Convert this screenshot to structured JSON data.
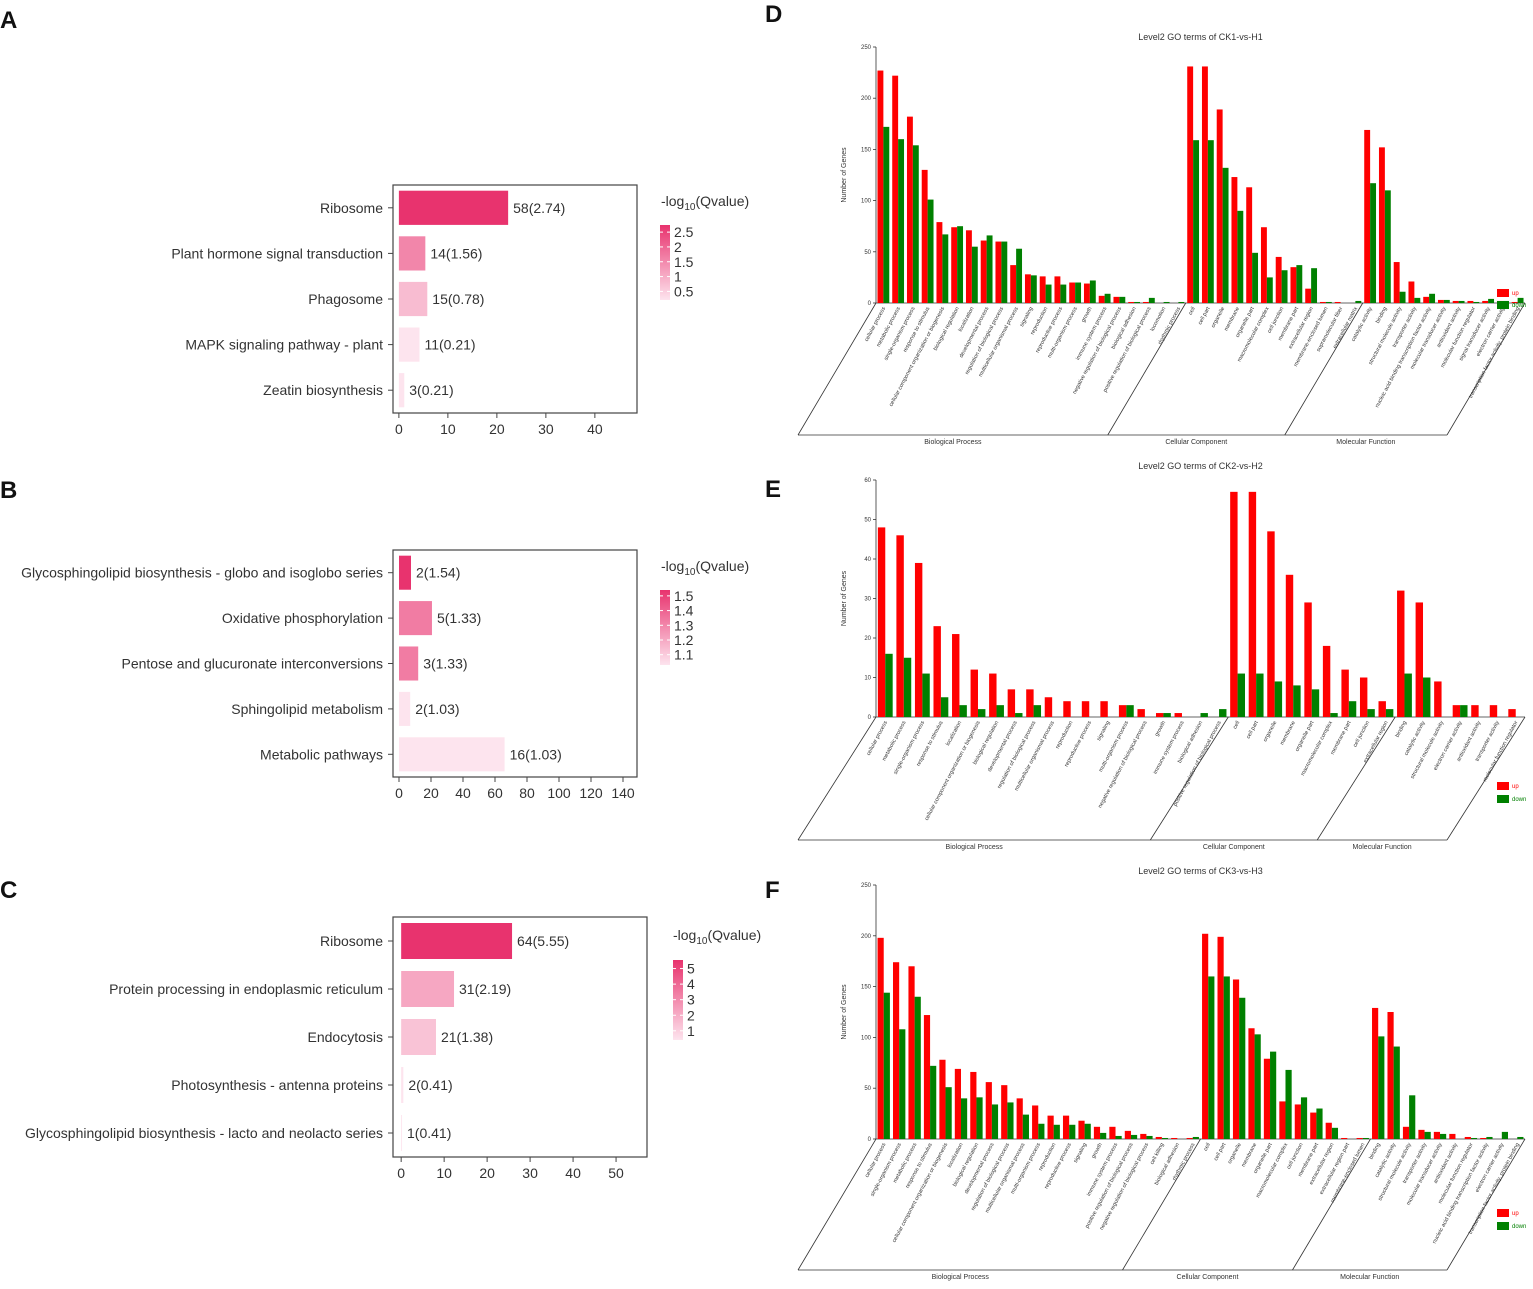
{
  "chart_data": [
    {
      "type": "barh",
      "panel": "A",
      "categories": [
        "Ribosome",
        "Plant hormone signal transduction",
        "Phagosome",
        "MAPK signaling pathway - plant",
        "Zeatin biosynthesis"
      ],
      "values": [
        22.3,
        5.4,
        5.8,
        4.2,
        1.1
      ],
      "bar_labels": [
        "58(2.74)",
        "14(1.56)",
        "15(0.78)",
        "11(0.21)",
        "3(0.21)"
      ],
      "color_values": [
        2.74,
        1.56,
        0.78,
        0.21,
        0.21
      ],
      "xlim": [
        -1.2,
        48.6
      ],
      "xticks": [
        0,
        10,
        20,
        30,
        40
      ],
      "colorbar_title": [
        "-log",
        "10",
        "(Qvalue)"
      ],
      "colorbar_lim": [
        0.21,
        2.74
      ],
      "colorbar_ticks": [
        0.5,
        1,
        1.5,
        2,
        2.5
      ],
      "colors": [
        "#fde4ee",
        "#e8336e"
      ]
    },
    {
      "type": "barh",
      "panel": "B",
      "categories": [
        "Glycosphingolipid biosynthesis - globo and isoglobo series",
        "Oxidative phosphorylation",
        "Pentose and glucuronate interconversions",
        "Sphingolipid metabolism",
        "Metabolic pathways"
      ],
      "values": [
        7.5,
        20.6,
        12,
        7,
        66
      ],
      "bar_labels": [
        "2(1.54)",
        "5(1.33)",
        "3(1.33)",
        "2(1.03)",
        "16(1.03)"
      ],
      "color_values": [
        1.54,
        1.33,
        1.33,
        1.03,
        1.03
      ],
      "xlim": [
        -3.75,
        148.75
      ],
      "xticks": [
        0,
        20,
        40,
        60,
        80,
        100,
        120,
        140
      ],
      "colorbar_title": [
        "-log",
        "10",
        "(Qvalue)"
      ],
      "colorbar_lim": [
        1.03,
        1.54
      ],
      "colorbar_ticks": [
        1.1,
        1.2,
        1.3,
        1.4,
        1.5
      ],
      "colors": [
        "#fde4ee",
        "#e8336e"
      ]
    },
    {
      "type": "barh",
      "panel": "C",
      "categories": [
        "Ribosome",
        "Protein processing in endoplasmic reticulum",
        "Endocytosis",
        "Photosynthesis - antenna proteins",
        "Glycosphingolipid biosynthesis - lacto and neolacto series"
      ],
      "values": [
        25.8,
        12.3,
        8.1,
        0.5,
        0.2
      ],
      "bar_labels": [
        "64(5.55)",
        "31(2.19)",
        "21(1.38)",
        "2(0.41)",
        "1(0.41)"
      ],
      "color_values": [
        5.55,
        2.19,
        1.38,
        0.41,
        0.41
      ],
      "xlim": [
        -1.9,
        57.2
      ],
      "xticks": [
        0,
        10,
        20,
        30,
        40,
        50
      ],
      "colorbar_title": [
        "-log",
        "10",
        "(Qvalue)"
      ],
      "colorbar_lim": [
        0.41,
        5.55
      ],
      "colorbar_ticks": [
        1,
        2,
        3,
        4,
        5
      ],
      "colors": [
        "#fde4ee",
        "#e8336e"
      ]
    },
    {
      "type": "bar",
      "panel": "D",
      "title": "Level2 GO terms of CK1-vs-H1",
      "ylabel": "Number of Genes",
      "groups": [
        {
          "name": "Biological Process",
          "categories": [
            "cellular process",
            "metabolic process",
            "single-organism process",
            "response to stimulus",
            "cellular component organization or biogenesis",
            "biological regulation",
            "localization",
            "developmental process",
            "regulation of biological process",
            "multicellular organismal process",
            "signaling",
            "reproduction",
            "reproductive process",
            "multi-organism process",
            "growth",
            "immune system process",
            "negative regulation of biological process",
            "biological adhesion",
            "positive regulation of biological process",
            "locomotion",
            "rhythmic process"
          ]
        },
        {
          "name": "Cellular Component",
          "categories": [
            "cell",
            "cell part",
            "organelle",
            "membrane",
            "organelle part",
            "macromolecular complex",
            "cell junction",
            "membrane part",
            "extracellular region",
            "membrane-enclosed lumen",
            "supramolecular fiber",
            "extracellular matrix"
          ]
        },
        {
          "name": "Molecular Function",
          "categories": [
            "catalytic activity",
            "binding",
            "structural molecule activity",
            "transporter activity",
            "nucleic acid binding transcription factor activity",
            "molecular transducer activity",
            "antioxidant activity",
            "molecular function regulator",
            "signal transducer activity",
            "electron carrier activity",
            "transcription factor activity, protein binding"
          ]
        }
      ],
      "series": [
        {
          "name": "up",
          "color": "#ff0000",
          "values": [
            227,
            222,
            182,
            130,
            79,
            74,
            71,
            61,
            60,
            37,
            28,
            26,
            26,
            20,
            19,
            7,
            6,
            1,
            1,
            0,
            0,
            231,
            231,
            189,
            123,
            113,
            74,
            45,
            35,
            14,
            1,
            1,
            0,
            169,
            152,
            40,
            21,
            6,
            3,
            2,
            2,
            2,
            2,
            1
          ]
        },
        {
          "name": "down",
          "color": "#008000",
          "values": [
            172,
            160,
            154,
            101,
            67,
            75,
            55,
            66,
            60,
            53,
            27,
            18,
            18,
            20,
            22,
            9,
            6,
            1,
            5,
            1,
            1,
            159,
            159,
            132,
            90,
            49,
            25,
            32,
            37,
            34,
            1,
            0,
            2,
            117,
            110,
            11,
            5,
            9,
            3,
            2,
            1,
            4,
            2,
            5
          ]
        }
      ],
      "ylim": [
        0,
        250
      ],
      "yticks": [
        0,
        50,
        100,
        150,
        200,
        250
      ]
    },
    {
      "type": "bar",
      "panel": "E",
      "title": "Level2 GO terms of CK2-vs-H2",
      "ylabel": "Number of Genes",
      "groups": [
        {
          "name": "Biological Process",
          "categories": [
            "cellular process",
            "metabolic process",
            "single-organism process",
            "response to stimulus",
            "localization",
            "cellular component organization or biogenesis",
            "biological regulation",
            "developmental process",
            "regulation of biological process",
            "multicellular organismal process",
            "reproduction",
            "reproductive process",
            "signaling",
            "multi-organism process",
            "negative regulation of biological process",
            "growth",
            "immune system process",
            "biological adhesion",
            "positive regulation of biological process"
          ]
        },
        {
          "name": "Cellular Component",
          "categories": [
            "cell",
            "cell part",
            "organelle",
            "membrane",
            "organelle part",
            "macromolecular complex",
            "membrane part",
            "cell junction",
            "extracellular region"
          ]
        },
        {
          "name": "Molecular Function",
          "categories": [
            "binding",
            "catalytic activity",
            "structural molecule activity",
            "electron carrier activity",
            "antioxidant activity",
            "transporter activity",
            "molecular function regulator"
          ]
        }
      ],
      "series": [
        {
          "name": "up",
          "color": "#ff0000",
          "values": [
            48,
            46,
            39,
            23,
            21,
            12,
            11,
            7,
            7,
            5,
            4,
            4,
            4,
            3,
            2,
            1,
            1,
            0,
            0,
            57,
            57,
            47,
            36,
            29,
            18,
            12,
            10,
            4,
            32,
            29,
            9,
            3,
            3,
            3,
            2
          ]
        },
        {
          "name": "down",
          "color": "#008000",
          "values": [
            16,
            15,
            11,
            5,
            3,
            2,
            3,
            1,
            3,
            0,
            0,
            0,
            0,
            3,
            0,
            1,
            0,
            1,
            2,
            11,
            11,
            9,
            8,
            7,
            1,
            4,
            2,
            2,
            11,
            10,
            0,
            3,
            0,
            0,
            0
          ]
        }
      ],
      "ylim": [
        0,
        60
      ],
      "yticks": [
        0,
        10,
        20,
        30,
        40,
        50,
        60
      ]
    },
    {
      "type": "bar",
      "panel": "F",
      "title": "Level2 GO terms of CK3-vs-H3",
      "ylabel": "Number of Genes",
      "groups": [
        {
          "name": "Biological Process",
          "categories": [
            "cellular process",
            "single-organism process",
            "metabolic process",
            "response to stimulus",
            "cellular component organization or biogenesis",
            "localization",
            "biological regulation",
            "developmental process",
            "regulation of biological process",
            "multicellular organismal process",
            "multi-organism process",
            "reproduction",
            "reproductive process",
            "signaling",
            "growth",
            "immune system process",
            "positive regulation of biological process",
            "negative regulation of biological process",
            "cell killing",
            "biological adhesion",
            "rhythmic process"
          ]
        },
        {
          "name": "Cellular Component",
          "categories": [
            "cell",
            "cell part",
            "organelle",
            "membrane",
            "organelle part",
            "macromolecular complex",
            "cell junction",
            "membrane part",
            "extracellular region",
            "extracellular region part",
            "membrane-enclosed lumen"
          ]
        },
        {
          "name": "Molecular Function",
          "categories": [
            "binding",
            "catalytic activity",
            "structural molecule activity",
            "transporter activity",
            "molecular transducer activity",
            "antioxidant activity",
            "molecular function regulator",
            "nucleic acid binding transcription factor activity",
            "electron carrier activity",
            "transcription factor activity, protein binding"
          ]
        }
      ],
      "series": [
        {
          "name": "up",
          "color": "#ff0000",
          "values": [
            198,
            174,
            170,
            122,
            78,
            69,
            66,
            56,
            53,
            40,
            33,
            23,
            23,
            18,
            12,
            12,
            8,
            5,
            2,
            1,
            1,
            202,
            199,
            157,
            109,
            79,
            37,
            34,
            26,
            16,
            1,
            1,
            129,
            125,
            12,
            9,
            7,
            5,
            2,
            1,
            0,
            0
          ]
        },
        {
          "name": "down",
          "color": "#008000",
          "values": [
            144,
            108,
            140,
            72,
            51,
            40,
            41,
            34,
            36,
            24,
            15,
            14,
            14,
            15,
            6,
            3,
            4,
            3,
            1,
            0,
            2,
            160,
            160,
            139,
            103,
            86,
            68,
            41,
            30,
            11,
            0,
            1,
            101,
            91,
            43,
            7,
            5,
            0,
            1,
            2,
            7,
            2
          ]
        }
      ],
      "ylim": [
        0,
        250
      ],
      "yticks": [
        0,
        50,
        100,
        150,
        200,
        250
      ]
    }
  ]
}
